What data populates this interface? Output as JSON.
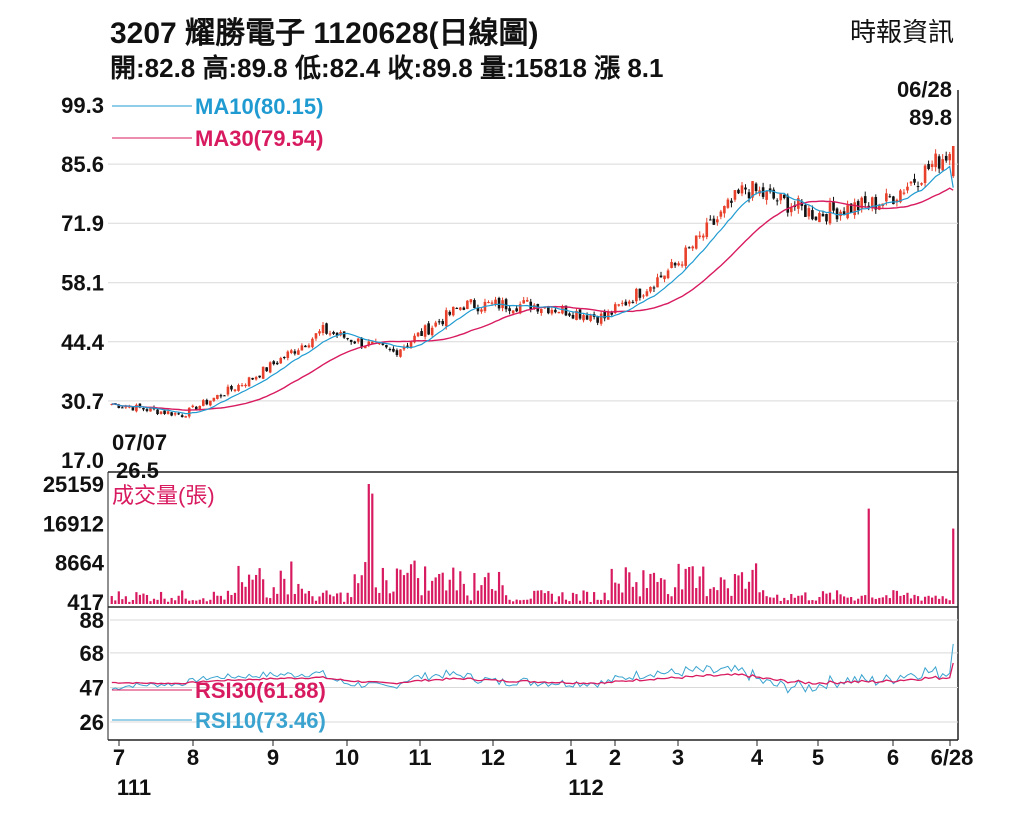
{
  "header": {
    "title": "3207  耀勝電子 1120628(日線圖)",
    "source": "時報資訊",
    "quote": "開:82.8 高:89.8 低:82.4 收:89.8 量:15818 漲 8.1"
  },
  "colors": {
    "up": "#e8402a",
    "down": "#111111",
    "ma10": "#1f9bd1",
    "ma30": "#d81b60",
    "volume": "#d81b60",
    "rsi30": "#d81b60",
    "rsi10": "#3aa3cf",
    "grid": "#d9d9d9"
  },
  "chart_data": [
    {
      "type": "candlestick",
      "yticks": [
        "99.3",
        "85.6",
        "71.9",
        "58.1",
        "44.4",
        "30.7",
        "17.0"
      ],
      "ylim": [
        17.0,
        99.3
      ],
      "grid": true,
      "legend": [
        {
          "name": "MA10(80.15)",
          "series": "ma10"
        },
        {
          "name": "MA30(79.54)",
          "series": "ma30"
        }
      ],
      "annotations": [
        {
          "date": "06/28",
          "value": "89.8",
          "kind": "high"
        },
        {
          "date": "07/07",
          "value": "26.5",
          "kind": "low"
        }
      ],
      "ma10_last": 80.15,
      "ma30_last": 79.54,
      "monthly_close": [
        {
          "month": "111/7",
          "close": 27.5
        },
        {
          "month": "111/8",
          "close": 36
        },
        {
          "month": "111/9",
          "close": 47
        },
        {
          "month": "111/10",
          "close": 42
        },
        {
          "month": "111/11",
          "close": 53
        },
        {
          "month": "111/12",
          "close": 53
        },
        {
          "month": "112/1",
          "close": 50
        },
        {
          "month": "112/2",
          "close": 62
        },
        {
          "month": "112/3",
          "close": 80
        },
        {
          "month": "112/4",
          "close": 74
        },
        {
          "month": "112/5",
          "close": 77
        },
        {
          "month": "112/6",
          "close": 89.8
        }
      ],
      "last_candle": {
        "open": 82.8,
        "high": 89.8,
        "low": 82.4,
        "close": 89.8
      }
    },
    {
      "type": "bar",
      "title": "成交量(張)",
      "yticks": [
        "25159",
        "16912",
        "8664",
        "417"
      ],
      "ylim": [
        417,
        25159
      ],
      "last_value": 15818,
      "peaks": [
        {
          "month": "111/11",
          "value": 25159
        },
        {
          "month": "112/5",
          "value": 20000
        },
        {
          "month": "112/6",
          "value": 15818
        }
      ]
    },
    {
      "type": "line",
      "yticks": [
        "88",
        "68",
        "47",
        "26"
      ],
      "ylim": [
        26,
        88
      ],
      "legend": [
        {
          "name": "RSI30(61.88)",
          "series": "rsi30"
        },
        {
          "name": "RSI10(73.46)",
          "series": "rsi10"
        }
      ],
      "rsi30_last": 61.88,
      "rsi10_last": 73.46,
      "xticks": [
        "7",
        "8",
        "9",
        "10",
        "11",
        "12",
        "1",
        "2",
        "3",
        "4",
        "5",
        "6",
        "6/28"
      ],
      "year_labels": [
        "111",
        "112"
      ]
    }
  ]
}
